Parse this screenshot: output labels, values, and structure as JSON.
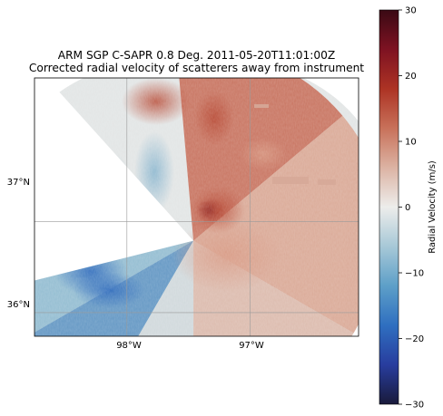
{
  "chart_data": {
    "type": "heatmap",
    "title": "ARM SGP C-SAPR 0.8 Deg. 2011-05-20T11:01:00Z",
    "subtitle": "Corrected radial velocity of scatterers away from instrument",
    "x_tick_labels": [
      "98°W",
      "97°W"
    ],
    "y_tick_labels": [
      "37°N",
      "36°N"
    ],
    "x_ticks_deg": [
      -98,
      -97
    ],
    "y_ticks_deg": [
      37,
      36
    ],
    "xlim_deg": [
      -98.75,
      -96.12
    ],
    "ylim_deg": [
      35.74,
      38.58
    ],
    "radar_center_deg": [
      -97.46,
      36.79
    ],
    "max_range_deg": 1.58,
    "grid": true,
    "colorbar": {
      "label": "Radial Velocity (m/s)",
      "vmin": -30,
      "vmax": 30,
      "ticks": [
        30,
        20,
        10,
        0,
        -10,
        -20,
        -30
      ],
      "tick_labels": [
        "30",
        "20",
        "10",
        "0",
        "−10",
        "−20",
        "−30"
      ],
      "colormap": [
        "#191a3a",
        "#283d9e",
        "#2f6fc0",
        "#5d9fc8",
        "#a7c8d7",
        "#ededeb",
        "#dcb3a3",
        "#c8715a",
        "#ad3324",
        "#7e1222",
        "#3a0a14"
      ]
    }
  }
}
